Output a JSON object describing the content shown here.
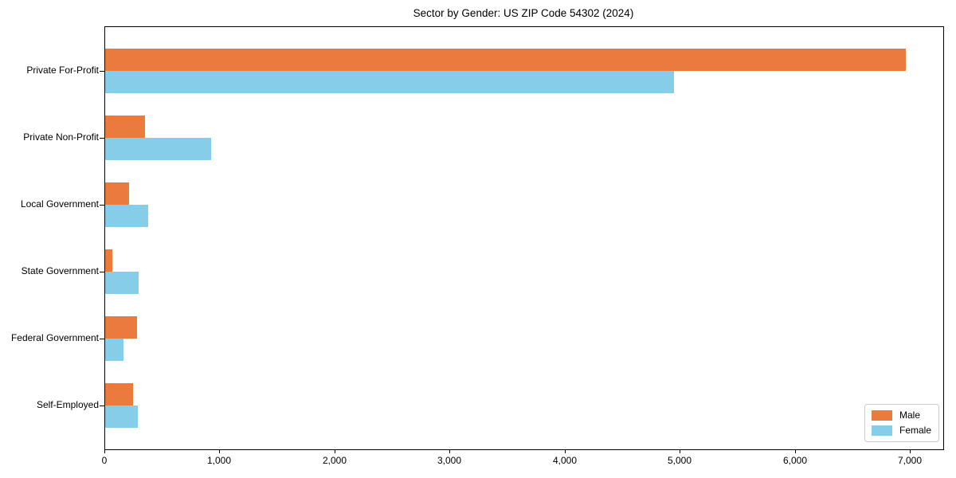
{
  "chart_data": {
    "type": "bar",
    "orientation": "horizontal",
    "title": "Sector by Gender: US ZIP Code 54302 (2024)",
    "categories": [
      "Private For-Profit",
      "Private Non-Profit",
      "Local Government",
      "State Government",
      "Federal Government",
      "Self-Employed"
    ],
    "series": [
      {
        "name": "Male",
        "color": "#ea7b3c",
        "values": [
          6960,
          345,
          210,
          60,
          275,
          245
        ]
      },
      {
        "name": "Female",
        "color": "#86cde9",
        "values": [
          4945,
          920,
          375,
          290,
          160,
          285
        ]
      }
    ],
    "xlabel": "",
    "ylabel": "",
    "xlim": [
      0,
      7284
    ],
    "x_ticks": [
      0,
      1000,
      2000,
      3000,
      4000,
      5000,
      6000,
      7000
    ],
    "x_tick_labels": [
      "0",
      "1,000",
      "2,000",
      "3,000",
      "4,000",
      "5,000",
      "6,000",
      "7,000"
    ],
    "grid": false,
    "legend": {
      "position": "lower right",
      "entries": [
        "Male",
        "Female"
      ]
    }
  }
}
